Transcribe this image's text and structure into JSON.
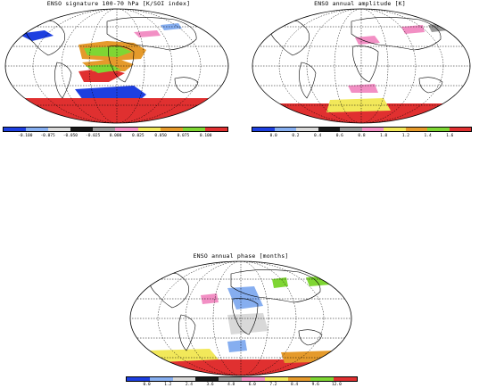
{
  "panels": [
    {
      "title": "ENSO signature 100-70 hPa [K/SOI index]",
      "colors": [
        "#1d3fe0",
        "#86aef0",
        "#d9d9d9",
        "#1a1a1a",
        "#999999",
        "#f28fc4",
        "#f2e85a",
        "#e59a2b",
        "#7fd633",
        "#e03030"
      ],
      "tick_labels": [
        "-0.100",
        "-0.075",
        "-0.050",
        "-0.025",
        "0.000",
        "0.025",
        "0.050",
        "0.075",
        "0.100"
      ]
    },
    {
      "title": "ENSO annual amplitude [K]",
      "colors": [
        "#1d3fe0",
        "#86aef0",
        "#d9d9d9",
        "#1a1a1a",
        "#999999",
        "#f28fc4",
        "#f2e85a",
        "#e59a2b",
        "#7fd633",
        "#e03030"
      ],
      "tick_labels": [
        "0.0",
        "0.2",
        "0.4",
        "0.6",
        "0.8",
        "1.0",
        "1.2",
        "1.4",
        "1.6"
      ]
    },
    {
      "title": "ENSO annual phase [months]",
      "colors": [
        "#1d3fe0",
        "#86aef0",
        "#d9d9d9",
        "#1a1a1a",
        "#999999",
        "#f28fc4",
        "#f2e85a",
        "#e59a2b",
        "#7fd633",
        "#e03030"
      ],
      "tick_labels": [
        "0.0",
        "1.2",
        "2.4",
        "3.6",
        "4.8",
        "6.0",
        "7.2",
        "8.4",
        "9.6",
        "12.0"
      ]
    }
  ]
}
